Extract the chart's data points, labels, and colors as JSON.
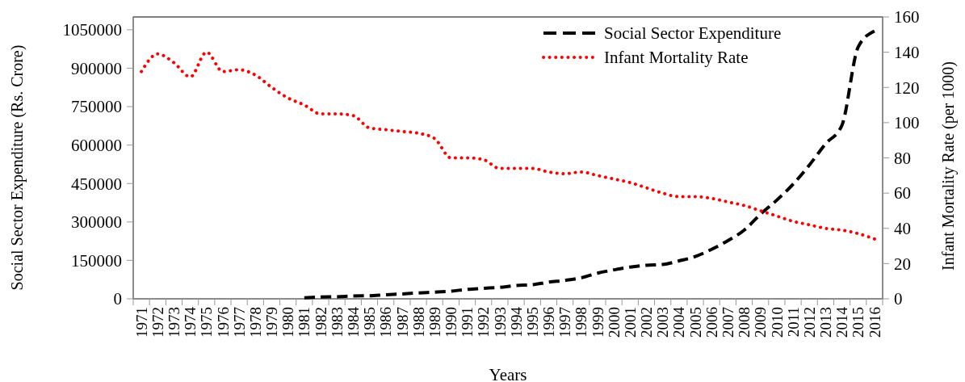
{
  "chart_data": {
    "type": "line",
    "xlabel": "Years",
    "ylabel": "Social Sector Expenditure (Rs. Crore)",
    "y2label": "Infant Mortality Rate (per 1000)",
    "categories": [
      "1971",
      "1972",
      "1973",
      "1974",
      "1975",
      "1976",
      "1977",
      "1978",
      "1979",
      "1980",
      "1981",
      "1982",
      "1983",
      "1984",
      "1985",
      "1986",
      "1987",
      "1988",
      "1989",
      "1990",
      "1991",
      "1992",
      "1993",
      "1994",
      "1995",
      "1996",
      "1997",
      "1998",
      "1999",
      "2000",
      "2001",
      "2002",
      "2003",
      "2004",
      "2005",
      "2006",
      "2007",
      "2008",
      "2009",
      "2010",
      "2011",
      "2012",
      "2013",
      "2014",
      "2015",
      "2016"
    ],
    "series": [
      {
        "name": "Social Sector Expenditure",
        "color": "#000000",
        "line_style": "dashed",
        "axis": "y",
        "values": [
          null,
          null,
          null,
          null,
          null,
          null,
          null,
          null,
          null,
          null,
          4000,
          7000,
          8000,
          11000,
          12000,
          16000,
          19000,
          23000,
          26000,
          30000,
          37000,
          41000,
          45000,
          52000,
          55000,
          65000,
          72000,
          82000,
          100000,
          113000,
          124000,
          131000,
          134000,
          148000,
          165000,
          193000,
          227000,
          268000,
          330000,
          385000,
          447000,
          522000,
          605000,
          677000,
          983000,
          1045000
        ]
      },
      {
        "name": "Infant Mortality Rate",
        "color": "#ff0000",
        "line_style": "dotted",
        "axis": "y2",
        "values": [
          129,
          139,
          134,
          126,
          140,
          129,
          130,
          127,
          120,
          114,
          110,
          105,
          105,
          104,
          97,
          96,
          95,
          94,
          91,
          80,
          80,
          79,
          74,
          74,
          74,
          72,
          71,
          72,
          70,
          68,
          66,
          63,
          60,
          58,
          58,
          57,
          55,
          53,
          50,
          47,
          44,
          42,
          40,
          39,
          37,
          34
        ]
      }
    ],
    "ylim": [
      0,
      1100000
    ],
    "yticks": [
      0,
      150000,
      300000,
      450000,
      600000,
      750000,
      900000,
      1050000
    ],
    "y2lim": [
      0,
      160
    ],
    "y2ticks": [
      0,
      20,
      40,
      60,
      80,
      100,
      120,
      140,
      160
    ],
    "grid": false,
    "legend": "top right"
  }
}
